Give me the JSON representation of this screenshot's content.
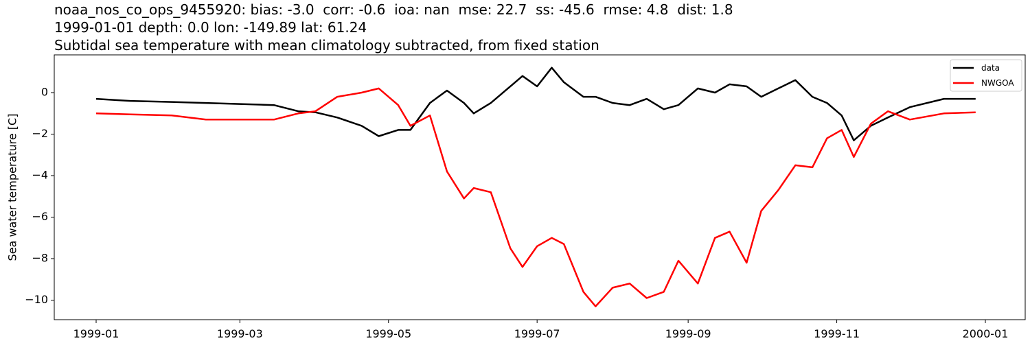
{
  "title": {
    "line1": "noaa_nos_co_ops_9455920: bias: -3.0  corr: -0.6  ioa: nan  mse: 22.7  ss: -45.6  rmse: 4.8  dist: 1.8",
    "line2": "1999-01-01 depth: 0.0 lon: -149.89 lat: 61.24",
    "line3": "Subtidal sea temperature with mean climatology subtracted, from fixed station"
  },
  "chart_data": {
    "type": "line",
    "title": "noaa_nos_co_ops_9455920: bias: -3.0  corr: -0.6  ioa: nan  mse: 22.7  ss: -45.6  rmse: 4.8  dist: 1.8 / 1999-01-01 depth: 0.0 lon: -149.89 lat: 61.24 / Subtidal sea temperature with mean climatology subtracted, from fixed station",
    "xlabel": "",
    "ylabel": "Sea water temperature [C]",
    "ylim": [
      -10.9,
      1.8
    ],
    "xlim": [
      "1998-12-10",
      "2000-01-18"
    ],
    "grid": false,
    "legend_position": "upper right",
    "xticks": [
      "1999-01",
      "1999-03",
      "1999-05",
      "1999-07",
      "1999-09",
      "1999-11",
      "2000-01"
    ],
    "yticks": [
      0,
      -2,
      -4,
      -6,
      -8,
      -10
    ],
    "ytick_labels": [
      "0",
      "−2",
      "−4",
      "−6",
      "−8",
      "−10"
    ],
    "x": [
      "1999-01-01",
      "1999-01-15",
      "1999-02-01",
      "1999-02-15",
      "1999-03-01",
      "1999-03-15",
      "1999-03-25",
      "1999-04-01",
      "1999-04-10",
      "1999-04-20",
      "1999-04-27",
      "1999-05-05",
      "1999-05-10",
      "1999-05-18",
      "1999-05-25",
      "1999-06-01",
      "1999-06-05",
      "1999-06-12",
      "1999-06-20",
      "1999-06-25",
      "1999-07-01",
      "1999-07-07",
      "1999-07-12",
      "1999-07-20",
      "1999-07-25",
      "1999-08-01",
      "1999-08-08",
      "1999-08-15",
      "1999-08-22",
      "1999-08-28",
      "1999-09-05",
      "1999-09-12",
      "1999-09-18",
      "1999-09-25",
      "1999-10-01",
      "1999-10-08",
      "1999-10-15",
      "1999-10-22",
      "1999-10-28",
      "1999-11-03",
      "1999-11-08",
      "1999-11-15",
      "1999-11-22",
      "1999-12-01",
      "1999-12-15",
      "1999-12-28"
    ],
    "series": [
      {
        "name": "data",
        "color": "#000000",
        "values": [
          -0.3,
          -0.4,
          -0.45,
          -0.5,
          -0.55,
          -0.6,
          -0.9,
          -0.95,
          -1.2,
          -1.6,
          -2.1,
          -1.8,
          -1.8,
          -0.5,
          0.1,
          -0.5,
          -1.0,
          -0.5,
          0.3,
          0.8,
          0.3,
          1.2,
          0.5,
          -0.2,
          -0.2,
          -0.5,
          -0.6,
          -0.3,
          -0.8,
          -0.6,
          0.2,
          0.0,
          0.4,
          0.3,
          -0.2,
          0.2,
          0.6,
          -0.2,
          -0.5,
          -1.1,
          -2.3,
          -1.6,
          -1.2,
          -0.7,
          -0.3,
          -0.3
        ]
      },
      {
        "name": "NWGOA",
        "color": "#ff0000",
        "values": [
          -1.0,
          -1.05,
          -1.1,
          -1.3,
          -1.3,
          -1.3,
          -1.0,
          -0.9,
          -0.2,
          0.0,
          0.2,
          -0.6,
          -1.6,
          -1.1,
          -3.8,
          -5.1,
          -4.6,
          -4.8,
          -7.5,
          -8.4,
          -7.4,
          -7.0,
          -7.3,
          -9.6,
          -10.3,
          -9.4,
          -9.2,
          -9.9,
          -9.6,
          -8.1,
          -9.2,
          -7.0,
          -6.7,
          -8.2,
          -5.7,
          -4.7,
          -3.5,
          -3.6,
          -2.2,
          -1.8,
          -3.1,
          -1.5,
          -0.9,
          -1.3,
          -1.0,
          -0.95
        ]
      }
    ]
  },
  "legend": {
    "items": [
      {
        "label": "data",
        "color": "#000000"
      },
      {
        "label": "NWGOA",
        "color": "#ff0000"
      }
    ]
  }
}
